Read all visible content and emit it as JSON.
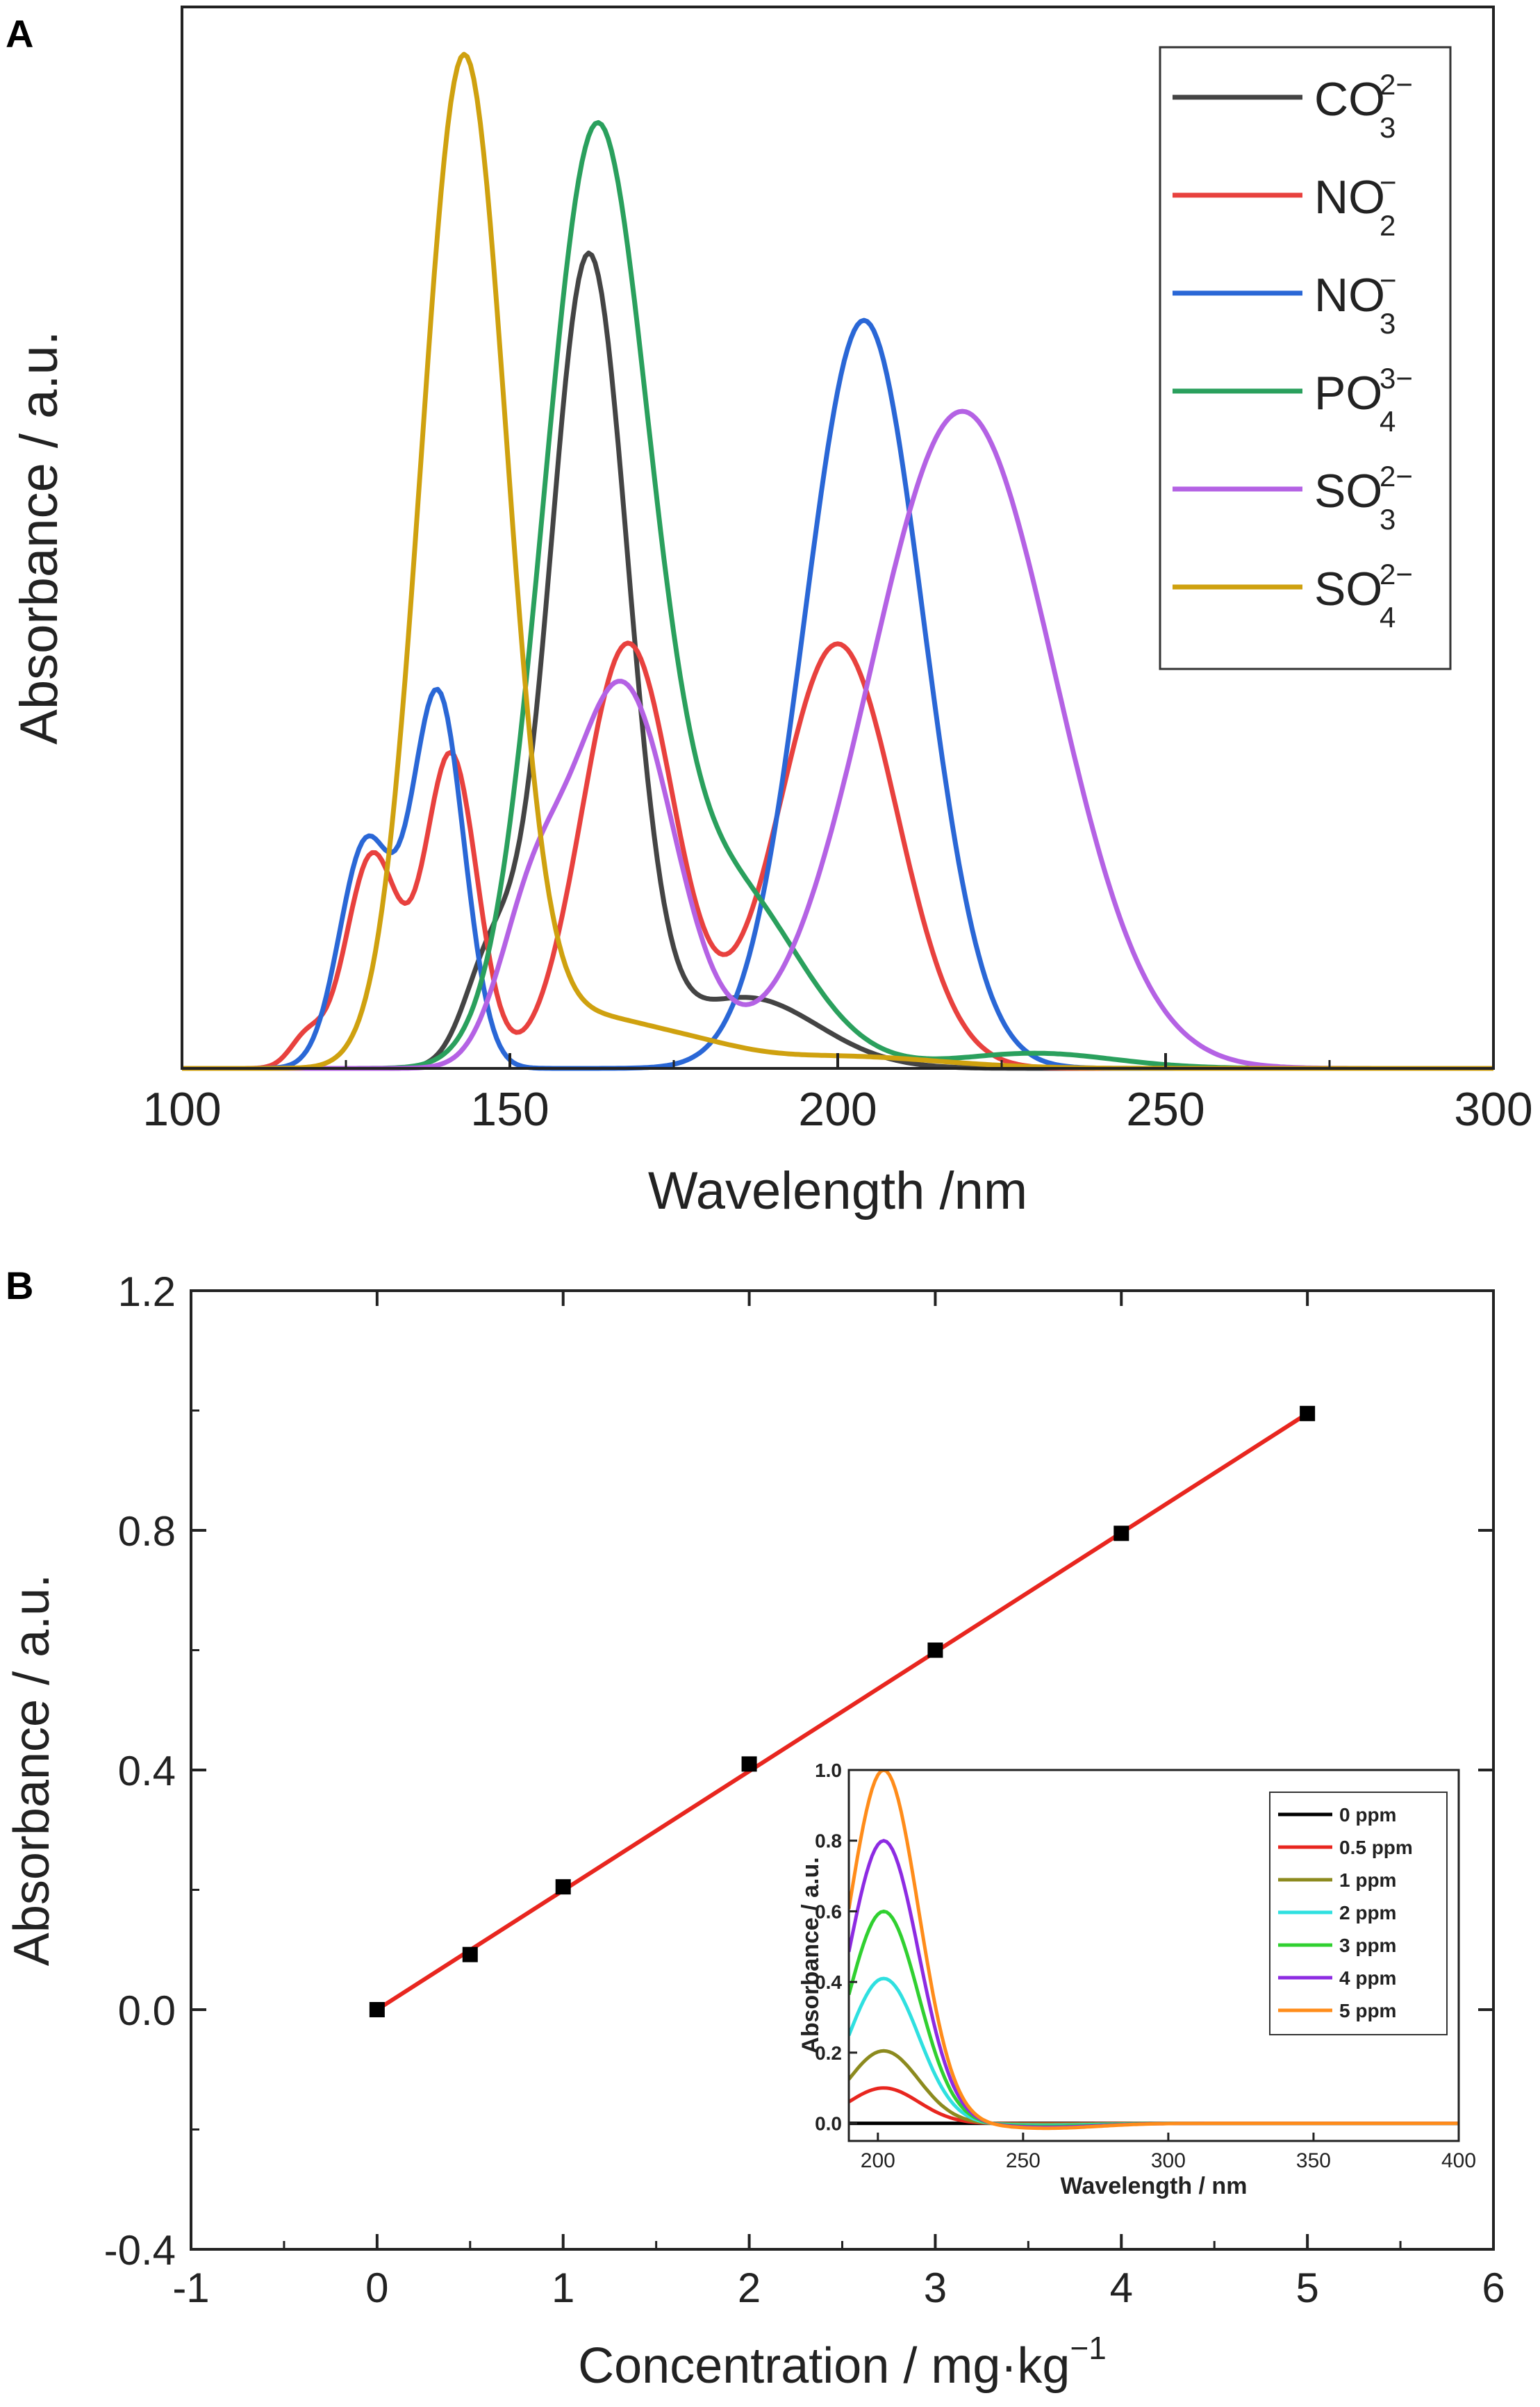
{
  "panels": {
    "a_label": "A",
    "b_label": "B"
  },
  "chart_data": [
    {
      "id": "A",
      "type": "line",
      "xlabel": "Wavelength /nm",
      "ylabel": "Absorbance / a.u.",
      "xlim": [
        100,
        300
      ],
      "ylim": [
        0,
        1.05
      ],
      "xticks": [
        100,
        150,
        200,
        250,
        300
      ],
      "legend": "top-right",
      "series": [
        {
          "name": "CO",
          "sub": "3",
          "sup": "2−",
          "color": "#444444",
          "peaks": [
            [
              147,
              0.1,
              4
            ],
            [
              162,
              0.8,
              6
            ],
            [
              186,
              0.07,
              11
            ]
          ]
        },
        {
          "name": "NO",
          "sub": "2",
          "sup": "−",
          "color": "#e8413e",
          "peaks": [
            [
              119,
              0.03,
              2.5
            ],
            [
              129,
              0.21,
              4
            ],
            [
              141,
              0.31,
              4
            ],
            [
              168,
              0.42,
              7
            ],
            [
              200,
              0.42,
              9
            ]
          ]
        },
        {
          "name": "NO",
          "sub": "3",
          "sup": "−",
          "color": "#2a67d6",
          "peaks": [
            [
              128,
              0.22,
              4
            ],
            [
              139,
              0.37,
              4
            ],
            [
              204,
              0.74,
              9
            ]
          ]
        },
        {
          "name": "PO",
          "sub": "4",
          "sup": "3−",
          "color": "#2aa05d",
          "peaks": [
            [
              163,
              0.9,
              8
            ],
            [
              183,
              0.18,
              11
            ],
            [
              230,
              0.015,
              12
            ]
          ]
        },
        {
          "name": "SO",
          "sub": "3",
          "sup": "2−",
          "color": "#b462e4",
          "peaks": [
            [
              153,
              0.12,
              5
            ],
            [
              167,
              0.38,
              8
            ],
            [
              219,
              0.65,
              14
            ]
          ]
        },
        {
          "name": "SO",
          "sub": "4",
          "sup": "2−",
          "color": "#cfa10f",
          "peaks": [
            [
              143,
              1.0,
              6.5
            ],
            [
              161,
              0.04,
              8
            ],
            [
              175,
              0.025,
              9
            ],
            [
              200,
              0.012,
              15
            ]
          ]
        }
      ]
    },
    {
      "id": "B",
      "type": "scatter",
      "xlabel": "Concentration / mg·kg",
      "xlabel_sup": "−1",
      "ylabel": "Absorbance / a.u.",
      "xlim": [
        -1,
        6
      ],
      "ylim": [
        -0.4,
        1.2
      ],
      "xticks": [
        -1,
        0,
        1,
        2,
        3,
        4,
        5,
        6
      ],
      "yticks": [
        -0.4,
        0.0,
        0.4,
        0.8,
        1.2
      ],
      "ytick_labels": [
        "-0.4",
        "0.0",
        "0.4",
        "0.8",
        "1.2"
      ],
      "points": {
        "x": [
          0,
          0.5,
          1,
          2,
          3,
          4,
          5
        ],
        "y": [
          0.0,
          0.092,
          0.205,
          0.41,
          0.6,
          0.795,
          0.995
        ]
      },
      "fit": {
        "color": "#e8261f",
        "x": [
          0,
          5
        ],
        "y": [
          0.0,
          0.995
        ]
      }
    },
    {
      "id": "B-inset",
      "type": "line",
      "xlabel": "Wavelength / nm",
      "ylabel": "Absorbance / a.u.",
      "xlim": [
        190,
        400
      ],
      "ylim": [
        -0.05,
        1.0
      ],
      "xticks": [
        200,
        250,
        300,
        350,
        400
      ],
      "yticks": [
        0.0,
        0.2,
        0.4,
        0.6,
        0.8,
        1.0
      ],
      "ytick_labels": [
        "0.0",
        "0.2",
        "0.4",
        "0.6",
        "0.8",
        "1.0"
      ],
      "legend": "top-right",
      "series": [
        {
          "name": "0 ppm",
          "color": "#000000",
          "peak": 0.0
        },
        {
          "name": "0.5 ppm",
          "color": "#e8261f",
          "peak": 0.1
        },
        {
          "name": "1 ppm",
          "color": "#8c8a1e",
          "peak": 0.205
        },
        {
          "name": "2 ppm",
          "color": "#2fe0e0",
          "peak": 0.41
        },
        {
          "name": "3 ppm",
          "color": "#30d030",
          "peak": 0.6
        },
        {
          "name": "4 ppm",
          "color": "#8d2be2",
          "peak": 0.8
        },
        {
          "name": "5 ppm",
          "color": "#ff8c1a",
          "peak": 1.0
        }
      ],
      "peak_wavelength": 202
    }
  ]
}
